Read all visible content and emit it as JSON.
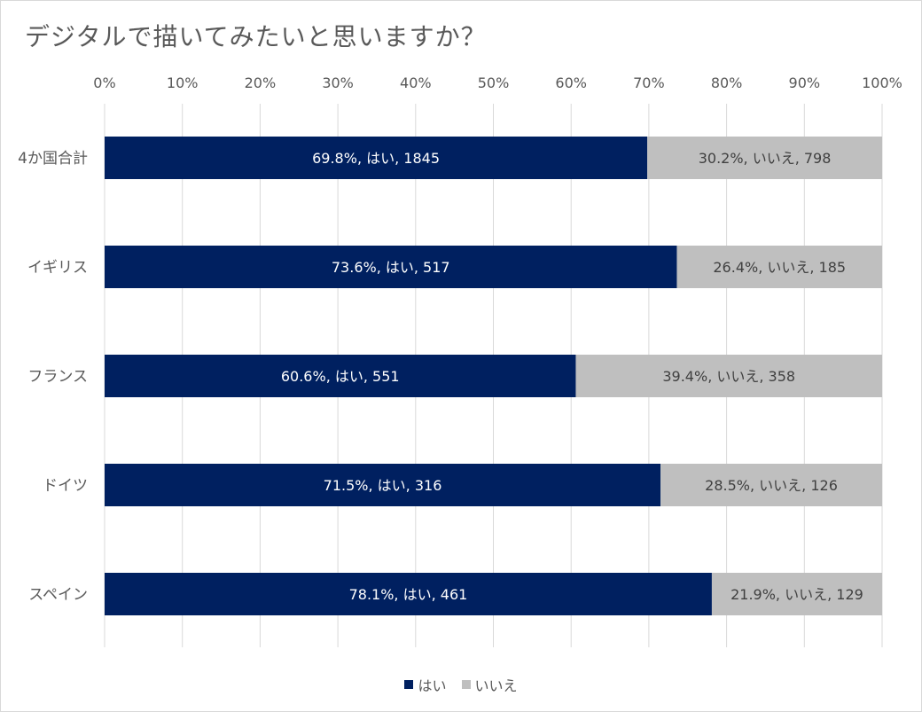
{
  "chart_data": {
    "type": "bar",
    "orientation": "horizontal",
    "stacked": "percent",
    "title": "デジタルで描いてみたいと思いますか？",
    "categories": [
      "4か国合計",
      "イギリス",
      "フランス",
      "ドイツ",
      "スペイン"
    ],
    "series": [
      {
        "name": "はい",
        "color": "#002060",
        "percent": [
          69.8,
          73.6,
          60.6,
          71.5,
          78.1
        ],
        "values": [
          1845,
          517,
          551,
          316,
          461
        ],
        "labels": [
          "69.8%, はい, 1845",
          "73.6%, はい, 517",
          "60.6%, はい, 551",
          "71.5%, はい, 316",
          "78.1%, はい, 461"
        ]
      },
      {
        "name": "いいえ",
        "color": "#bfbfbf",
        "percent": [
          30.2,
          26.4,
          39.4,
          28.5,
          21.9
        ],
        "values": [
          798,
          185,
          358,
          126,
          129
        ],
        "labels": [
          "30.2%, いいえ, 798",
          "26.4%, いいえ, 185",
          "39.4%, いいえ, 358",
          "28.5%, いいえ, 126",
          "21.9%, いいえ, 129"
        ]
      }
    ],
    "x_ticks": [
      "0%",
      "10%",
      "20%",
      "30%",
      "40%",
      "50%",
      "60%",
      "70%",
      "80%",
      "90%",
      "100%"
    ],
    "xlim": [
      0,
      100
    ],
    "grid": true,
    "legend": "bottom"
  }
}
